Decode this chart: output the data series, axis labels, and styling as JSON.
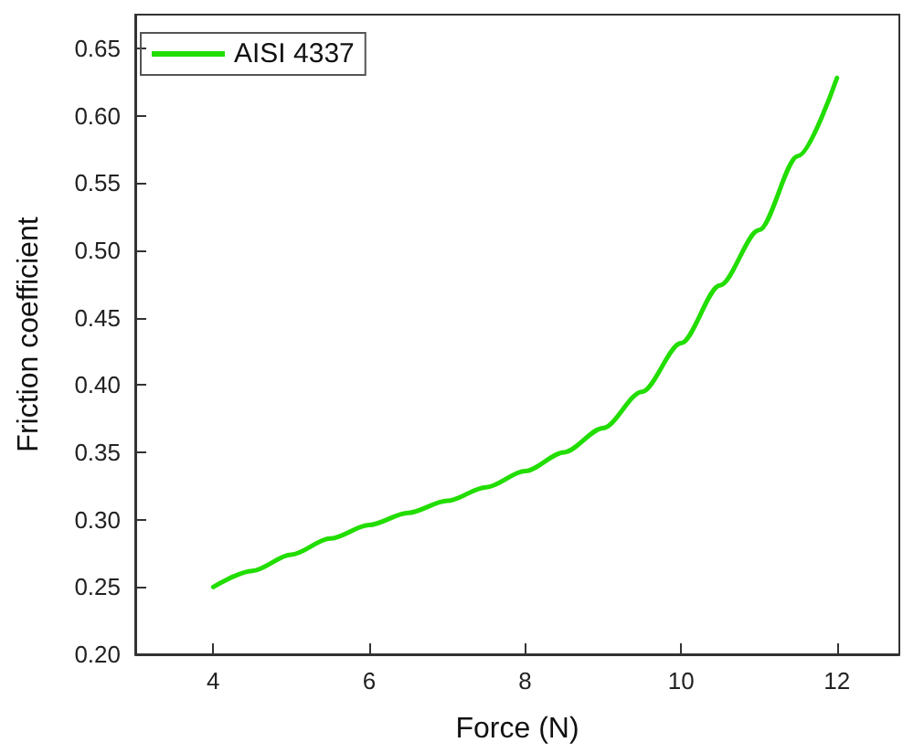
{
  "chart_data": {
    "type": "line",
    "xlabel": "Force (N)",
    "ylabel": "Friction coefficient",
    "xlim": [
      3,
      12.8
    ],
    "xticks": [
      4,
      6,
      8,
      10,
      12
    ],
    "ylim": [
      0.2,
      0.675
    ],
    "yticks": [
      {
        "value": 0.2,
        "label": "0.20"
      },
      0.25,
      {
        "value": 0.3,
        "label": "0.30"
      },
      0.35,
      {
        "value": 0.4,
        "label": "0.40"
      },
      0.45,
      {
        "value": 0.5,
        "label": "0.50"
      },
      0.55,
      {
        "value": 0.6,
        "label": "0.60"
      },
      0.65
    ],
    "legend": "top left",
    "grid": false,
    "marker": "none",
    "line_style": "solid",
    "series": [
      {
        "name": "AISI 4337",
        "color": "#22dd00",
        "x": [
          4,
          4.5,
          5,
          5.5,
          6,
          6.5,
          7,
          7.5,
          8,
          8.5,
          9,
          9.5,
          10,
          10.5,
          11,
          11.5,
          12
        ],
        "values": [
          0.25,
          0.262,
          0.274,
          0.286,
          0.296,
          0.305,
          0.314,
          0.324,
          0.336,
          0.35,
          0.368,
          0.395,
          0.431,
          0.474,
          0.515,
          0.57,
          0.628
        ]
      }
    ]
  }
}
